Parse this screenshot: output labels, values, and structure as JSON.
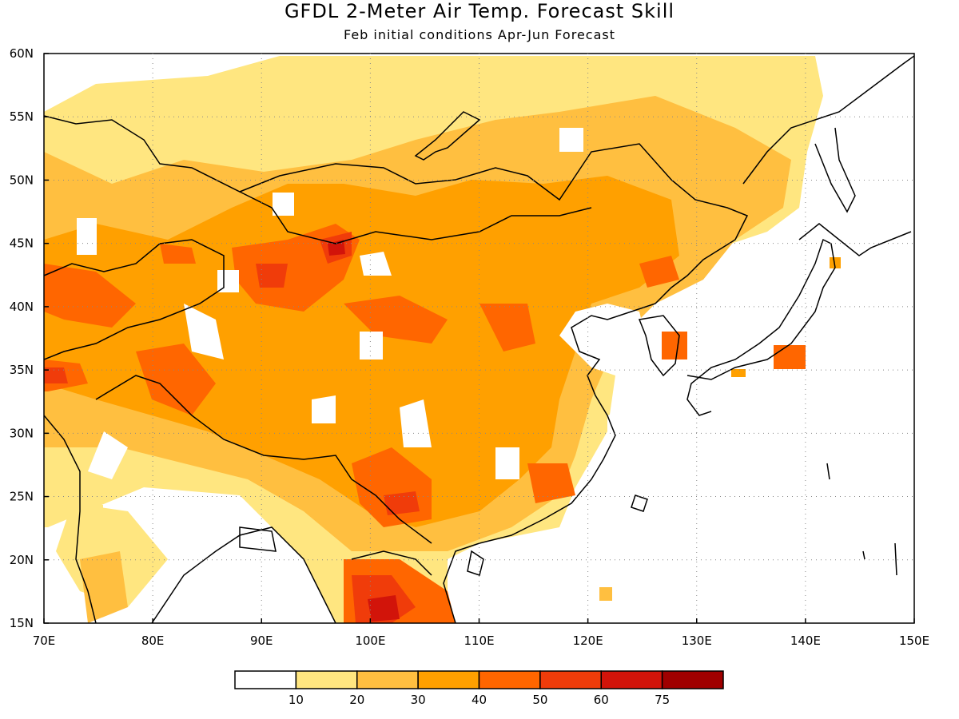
{
  "title": "GFDL 2-Meter Air Temp. Forecast Skill",
  "subtitle": "Feb initial conditions  Apr-Jun Forecast",
  "map": {
    "projection": "lat-lon",
    "lon_range": [
      70,
      150
    ],
    "lat_range": [
      15,
      60
    ],
    "grid": "dotted",
    "lon_ticks": [
      "70E",
      "80E",
      "90E",
      "100E",
      "110E",
      "120E",
      "130E",
      "140E",
      "150E"
    ],
    "lat_ticks": [
      "15N",
      "20N",
      "25N",
      "30N",
      "35N",
      "40N",
      "45N",
      "50N",
      "55N",
      "60N"
    ]
  },
  "colorbar": {
    "labels": [
      "10",
      "20",
      "30",
      "40",
      "50",
      "60",
      "75"
    ],
    "colors": [
      "#ffffff",
      "#ffe680",
      "#ffbf40",
      "#ffa000",
      "#ff6600",
      "#f03c0a",
      "#d2140a",
      "#a00000"
    ]
  }
}
